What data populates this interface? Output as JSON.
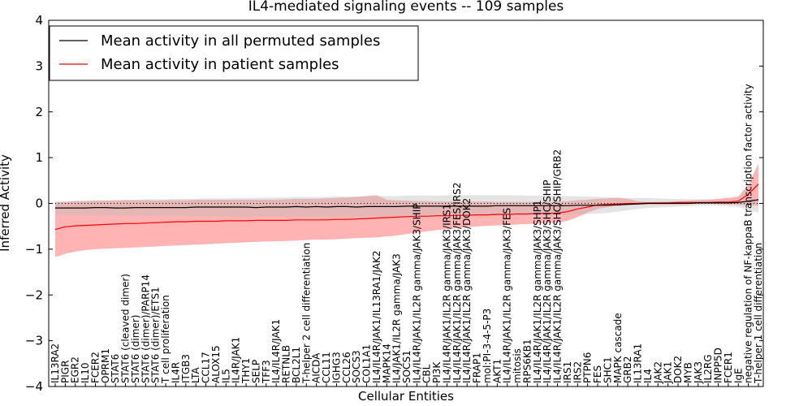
{
  "chart_data": {
    "type": "line",
    "title": "IL4-mediated signaling events -- 109 samples",
    "xlabel": "Cellular Entities",
    "ylabel": "Inferred Activity",
    "ylim": [
      -4,
      4
    ],
    "yticks": [
      -4,
      -3,
      -2,
      -1,
      0,
      1,
      2,
      3,
      4
    ],
    "legend_position": "top-left",
    "colors": {
      "permuted": "#000000",
      "patient": "#ff0000",
      "patient_band": "#ff9999",
      "permuted_band": "#bbbbbb"
    },
    "categories": [
      "IL13RA2",
      "PIGR",
      "EGR2",
      "IL10",
      "FCER2",
      "OPRM1",
      "STAT6",
      "STAT6 (cleaved dimer)",
      "STAT6 (dimer)",
      "STAT6 (dimer)/PARP14",
      "STAT6 (dimer)/ETS1",
      "T cell proliferation",
      "IL4R",
      "ITGB3",
      "LTA",
      "CCL17",
      "ALOX15",
      "IL5",
      "IL4R/JAK1",
      "THY1",
      "SELP",
      "TFF3",
      "IL4/IL4R/JAK1",
      "RETNLB",
      "BCL2L1",
      "T-helper 2 cell differentiation",
      "AICDA",
      "CCL11",
      "IGHG3",
      "CCL26",
      "SOCS3",
      "COL1A1",
      "IL4/IL4R/JAK1/IL13RA1/JAK2",
      "MAPK14",
      "IL4/JAK1/IL2R gamma/JAK3",
      "SOCS1",
      "IL4/IL4R/JAK1/IL2R gamma/JAK3/SHIP",
      "CBL",
      "PI3K",
      "IL4/IL4R/JAK1/IL2R gamma/JAK3/IRS1",
      "IL4/IL4R/JAK1/IL2R gamma/JAK3/FES/IRS2",
      "IL4/IL4R/JAK1/IL2R gamma/JAK3/DOK2",
      "FRAP1",
      "mol:PI-3-4-5-P3",
      "AKT1",
      "IL4/IL4R/JAK1/IL2R gamma/JAK3/FES",
      "mitosis",
      "RPS6KB1",
      "IL4/IL4R/JAK1/IL2R gamma/JAK3/SHP1",
      "IL4/IL4R/JAK1/IL2R gamma/JAK3/SHC/SHIP",
      "IL4/IL4R/JAK1/IL2R gamma/JAK3/SHC/SHIP/GRB2",
      "IRS1",
      "IRS2",
      "PTPN6",
      "FES",
      "SHC1",
      "MAPK cascade",
      "GRB2",
      "IL13RA1",
      "IL4",
      "JAK2",
      "JAK1",
      "DOK2",
      "MYB",
      "JAK3",
      "IL2RG",
      "INPP5D",
      "FCER1",
      "IgE",
      "negative regulation of NF-kappaB transcription factor activity",
      "T-helper 1 cell differentiation"
    ],
    "series": [
      {
        "name": "Mean activity in all permuted samples",
        "values": [
          -0.1,
          -0.1,
          -0.1,
          -0.1,
          -0.09,
          -0.09,
          -0.1,
          -0.1,
          -0.09,
          -0.09,
          -0.09,
          -0.09,
          -0.09,
          -0.09,
          -0.08,
          -0.08,
          -0.08,
          -0.08,
          -0.08,
          -0.08,
          -0.09,
          -0.08,
          -0.08,
          -0.08,
          -0.07,
          -0.08,
          -0.07,
          -0.08,
          -0.07,
          -0.07,
          -0.08,
          -0.07,
          -0.07,
          -0.07,
          -0.07,
          -0.06,
          -0.06,
          -0.06,
          -0.06,
          -0.06,
          -0.06,
          -0.06,
          -0.06,
          -0.06,
          -0.05,
          -0.05,
          -0.05,
          -0.05,
          -0.05,
          -0.05,
          -0.05,
          -0.05,
          -0.04,
          -0.04,
          -0.04,
          -0.04,
          -0.03,
          -0.02,
          -0.01,
          0.0,
          0.0,
          0.0,
          0.0,
          0.0,
          0.01,
          0.01,
          0.01,
          0.01,
          0.02,
          0.05,
          0.08
        ],
        "upper": [
          0.05,
          0.05,
          0.06,
          0.06,
          0.07,
          0.07,
          0.08,
          0.08,
          0.08,
          0.09,
          0.09,
          0.09,
          0.1,
          0.1,
          0.1,
          0.11,
          0.11,
          0.11,
          0.12,
          0.12,
          0.12,
          0.13,
          0.13,
          0.13,
          0.14,
          0.14,
          0.14,
          0.14,
          0.15,
          0.15,
          0.15,
          0.16,
          0.16,
          0.16,
          0.16,
          0.17,
          0.17,
          0.17,
          0.17,
          0.18,
          0.18,
          0.18,
          0.18,
          0.18,
          0.18,
          0.18,
          0.18,
          0.17,
          0.17,
          0.17,
          0.16,
          0.16,
          0.15,
          0.15,
          0.14,
          0.14,
          0.13,
          0.12,
          0.12,
          0.12,
          0.11,
          0.1,
          0.1,
          0.09,
          0.09,
          0.09,
          0.08,
          0.08,
          0.08,
          0.08,
          0.1
        ],
        "lower": [
          -0.25,
          -0.25,
          -0.26,
          -0.26,
          -0.26,
          -0.26,
          -0.27,
          -0.27,
          -0.27,
          -0.27,
          -0.28,
          -0.28,
          -0.28,
          -0.28,
          -0.28,
          -0.28,
          -0.28,
          -0.28,
          -0.29,
          -0.29,
          -0.29,
          -0.29,
          -0.29,
          -0.29,
          -0.29,
          -0.29,
          -0.29,
          -0.29,
          -0.29,
          -0.29,
          -0.29,
          -0.29,
          -0.29,
          -0.29,
          -0.29,
          -0.28,
          -0.28,
          -0.28,
          -0.28,
          -0.28,
          -0.28,
          -0.27,
          -0.27,
          -0.27,
          -0.27,
          -0.27,
          -0.26,
          -0.26,
          -0.26,
          -0.26,
          -0.25,
          -0.25,
          -0.24,
          -0.23,
          -0.22,
          -0.21,
          -0.18,
          -0.15,
          -0.12,
          -0.1,
          -0.09,
          -0.08,
          -0.07,
          -0.06,
          -0.05,
          -0.05,
          -0.05,
          -0.06,
          -0.08,
          -0.15,
          -0.2
        ]
      },
      {
        "name": "Mean activity in patient samples",
        "values": [
          -0.57,
          -0.51,
          -0.49,
          -0.48,
          -0.47,
          -0.46,
          -0.45,
          -0.44,
          -0.44,
          -0.43,
          -0.42,
          -0.41,
          -0.4,
          -0.4,
          -0.39,
          -0.39,
          -0.39,
          -0.38,
          -0.38,
          -0.38,
          -0.37,
          -0.37,
          -0.37,
          -0.37,
          -0.36,
          -0.36,
          -0.36,
          -0.36,
          -0.35,
          -0.35,
          -0.34,
          -0.33,
          -0.32,
          -0.31,
          -0.3,
          -0.29,
          -0.28,
          -0.28,
          -0.27,
          -0.27,
          -0.26,
          -0.26,
          -0.25,
          -0.25,
          -0.24,
          -0.24,
          -0.23,
          -0.23,
          -0.22,
          -0.22,
          -0.21,
          -0.18,
          -0.12,
          -0.08,
          -0.03,
          -0.02,
          -0.01,
          0.0,
          0.0,
          0.01,
          0.01,
          0.01,
          0.02,
          0.02,
          0.02,
          0.02,
          0.03,
          0.03,
          0.05,
          0.2,
          0.42
        ],
        "upper": [
          0.02,
          0.03,
          0.05,
          0.05,
          0.06,
          0.06,
          0.06,
          0.07,
          0.07,
          0.07,
          0.06,
          0.07,
          0.07,
          0.07,
          0.08,
          0.08,
          0.08,
          0.08,
          0.08,
          0.08,
          0.08,
          0.08,
          0.08,
          0.09,
          0.1,
          0.1,
          0.1,
          0.11,
          0.12,
          0.13,
          0.14,
          0.16,
          0.18,
          0.08,
          0.07,
          0.06,
          0.05,
          0.05,
          0.04,
          0.04,
          0.04,
          0.04,
          0.04,
          0.04,
          0.03,
          0.03,
          0.03,
          0.03,
          0.03,
          0.03,
          0.04,
          0.05,
          0.07,
          0.08,
          0.1,
          0.11,
          0.12,
          0.1,
          0.05,
          0.02,
          0.03,
          0.04,
          0.05,
          0.06,
          0.07,
          0.08,
          0.1,
          0.12,
          0.15,
          0.4,
          0.87
        ],
        "lower": [
          -1.17,
          -1.1,
          -1.05,
          -1.02,
          -1.0,
          -0.99,
          -0.98,
          -0.97,
          -0.96,
          -0.95,
          -0.94,
          -0.93,
          -0.92,
          -0.91,
          -0.9,
          -0.89,
          -0.88,
          -0.87,
          -0.86,
          -0.85,
          -0.84,
          -0.83,
          -0.83,
          -0.82,
          -0.81,
          -0.8,
          -0.79,
          -0.79,
          -0.78,
          -0.77,
          -0.76,
          -0.75,
          -0.74,
          -0.72,
          -0.7,
          -0.67,
          -0.64,
          -0.61,
          -0.58,
          -0.56,
          -0.54,
          -0.52,
          -0.5,
          -0.49,
          -0.48,
          -0.47,
          -0.46,
          -0.45,
          -0.44,
          -0.43,
          -0.42,
          -0.38,
          -0.3,
          -0.2,
          -0.12,
          -0.08,
          -0.06,
          -0.04,
          -0.03,
          -0.02,
          -0.02,
          -0.02,
          -0.01,
          -0.01,
          -0.01,
          -0.01,
          -0.01,
          -0.02,
          -0.03,
          -0.05,
          -0.05
        ]
      }
    ]
  }
}
